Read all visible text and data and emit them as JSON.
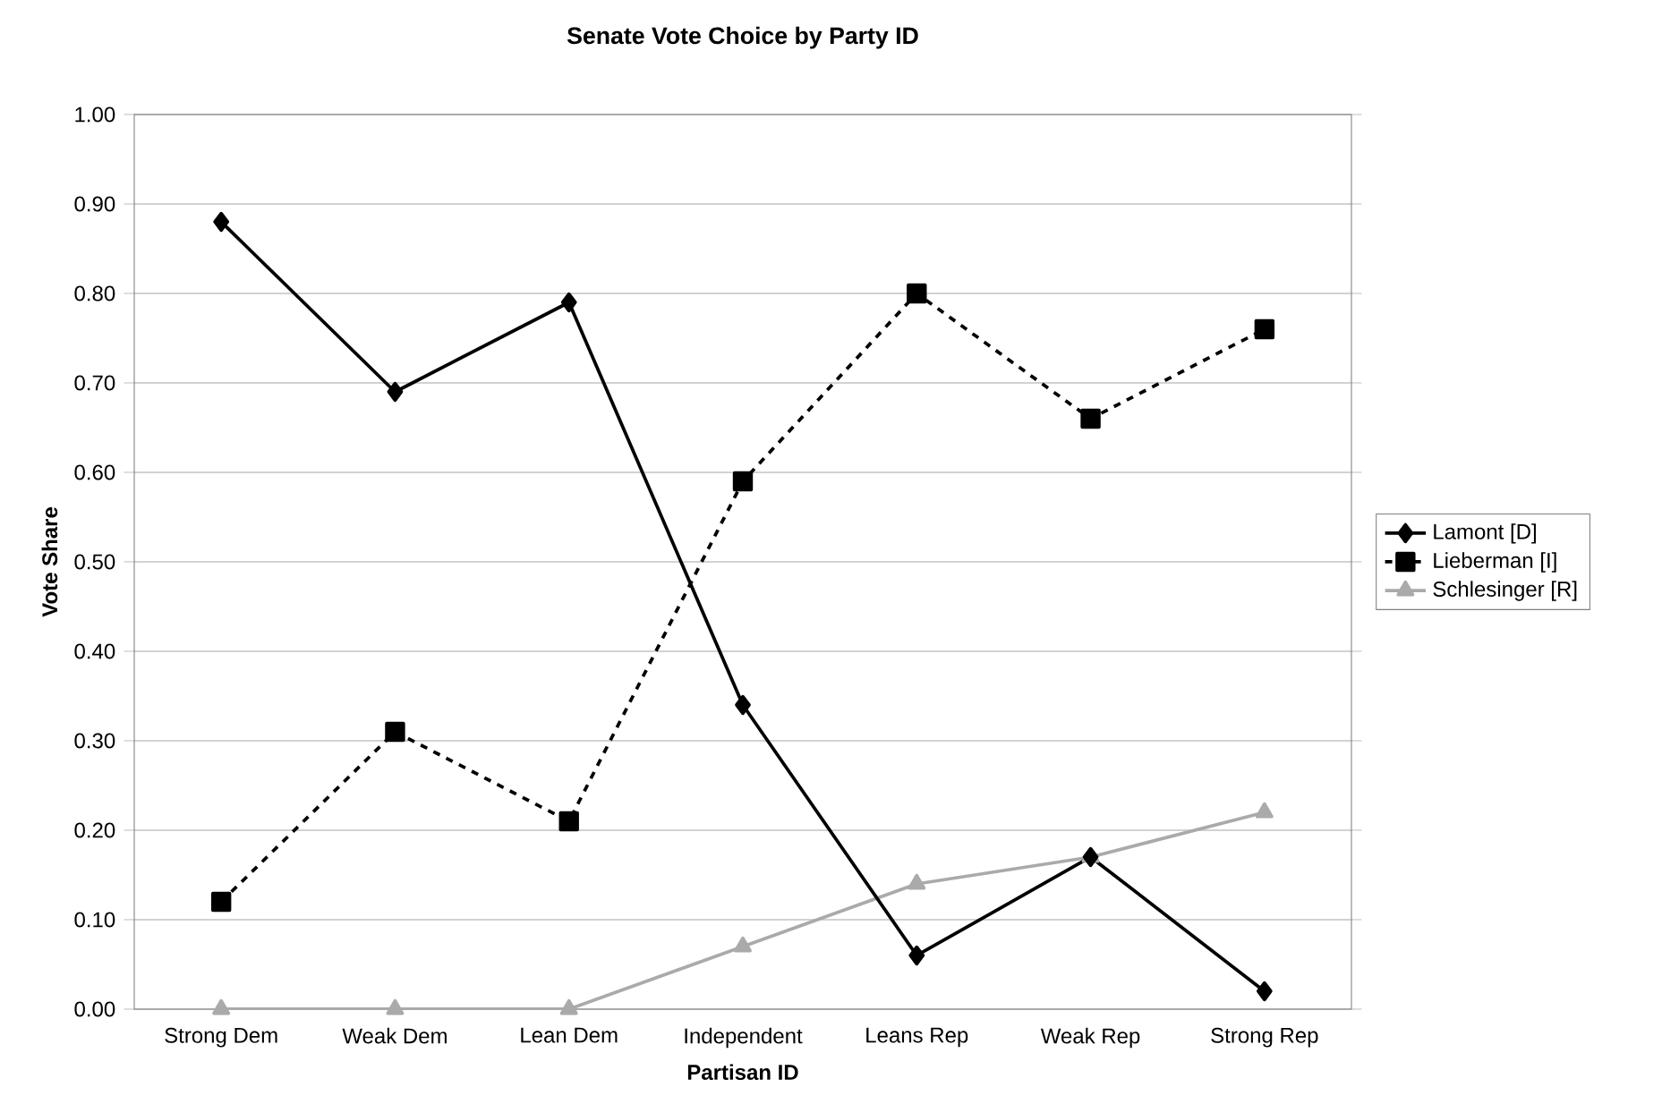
{
  "chart_data": {
    "type": "line",
    "title": "Senate Vote Choice by Party ID",
    "xlabel": "Partisan ID",
    "ylabel": "Vote Share",
    "categories": [
      "Strong Dem",
      "Weak Dem",
      "Lean Dem",
      "Independent",
      "Leans Rep",
      "Weak Rep",
      "Strong Rep"
    ],
    "series": [
      {
        "name": "Lamont [D]",
        "color": "#000000",
        "marker": "diamond",
        "line_style": "solid",
        "values": [
          0.88,
          0.69,
          0.79,
          0.34,
          0.06,
          0.17,
          0.02
        ]
      },
      {
        "name": "Lieberman [I]",
        "color": "#000000",
        "marker": "square",
        "line_style": "dashed",
        "values": [
          0.12,
          0.31,
          0.21,
          0.59,
          0.8,
          0.66,
          0.76
        ]
      },
      {
        "name": "Schlesinger [R]",
        "color": "#aaaaaa",
        "marker": "triangle",
        "line_style": "solid",
        "values": [
          0,
          0,
          0,
          0.07,
          0.14,
          0.17,
          0.22
        ]
      }
    ],
    "ylim": [
      0,
      1
    ],
    "yticks": [
      {
        "value": 0,
        "label": "0.00"
      },
      {
        "value": 0.1,
        "label": "0.10"
      },
      {
        "value": 0.2,
        "label": "0.20"
      },
      {
        "value": 0.3,
        "label": "0.30"
      },
      {
        "value": 0.4,
        "label": "0.40"
      },
      {
        "value": 0.5,
        "label": "0.50"
      },
      {
        "value": 0.6,
        "label": "0.60"
      },
      {
        "value": 0.7,
        "label": "0.70"
      },
      {
        "value": 0.8,
        "label": "0.80"
      },
      {
        "value": 0.9,
        "label": "0.90"
      },
      {
        "value": 1,
        "label": "1.00"
      }
    ],
    "grid": "y",
    "legend": "right"
  }
}
